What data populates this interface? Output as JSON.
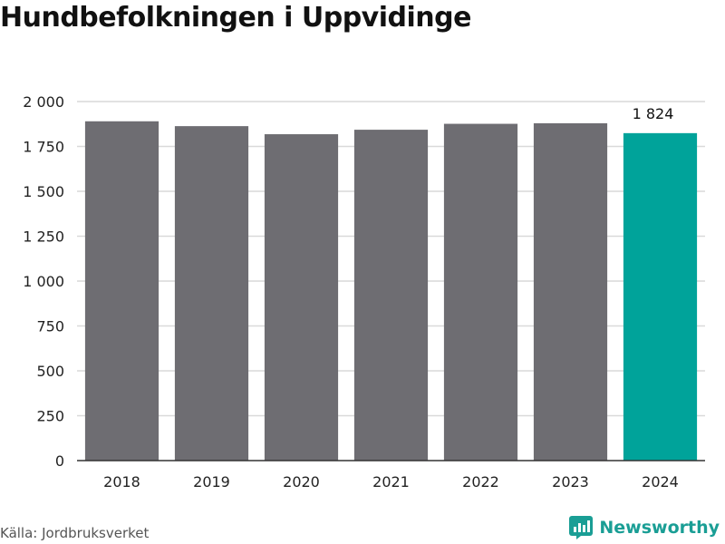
{
  "header": {
    "title": "Hundbefolkningen i Uppvidinge"
  },
  "footer": {
    "source": "Källa: Jordbruksverket",
    "brand": "Newsworthy",
    "brand_icon": "bar-chart-logo-icon"
  },
  "colors": {
    "bar": "#6e6d72",
    "highlight": "#00a39a",
    "grid": "#d9d9d9",
    "axis": "#333333",
    "brand": "#1a9e95"
  },
  "chart_data": {
    "type": "bar",
    "categories": [
      "2018",
      "2019",
      "2020",
      "2021",
      "2022",
      "2023",
      "2024"
    ],
    "values": [
      1890,
      1863,
      1818,
      1843,
      1876,
      1879,
      1824
    ],
    "highlight_index": 6,
    "data_labels": [
      {
        "index": 6,
        "text": "1 824"
      }
    ],
    "ylim": [
      0,
      2000
    ],
    "yticks": [
      0,
      250,
      500,
      750,
      1000,
      1250,
      1500,
      1750,
      2000
    ],
    "ytick_labels": [
      "0",
      "250",
      "500",
      "750",
      "1 000",
      "1 250",
      "1 500",
      "1 750",
      "2 000"
    ],
    "grid": true,
    "legend": "none",
    "title": "Hundbefolkningen i Uppvidinge",
    "xlabel": "",
    "ylabel": ""
  }
}
